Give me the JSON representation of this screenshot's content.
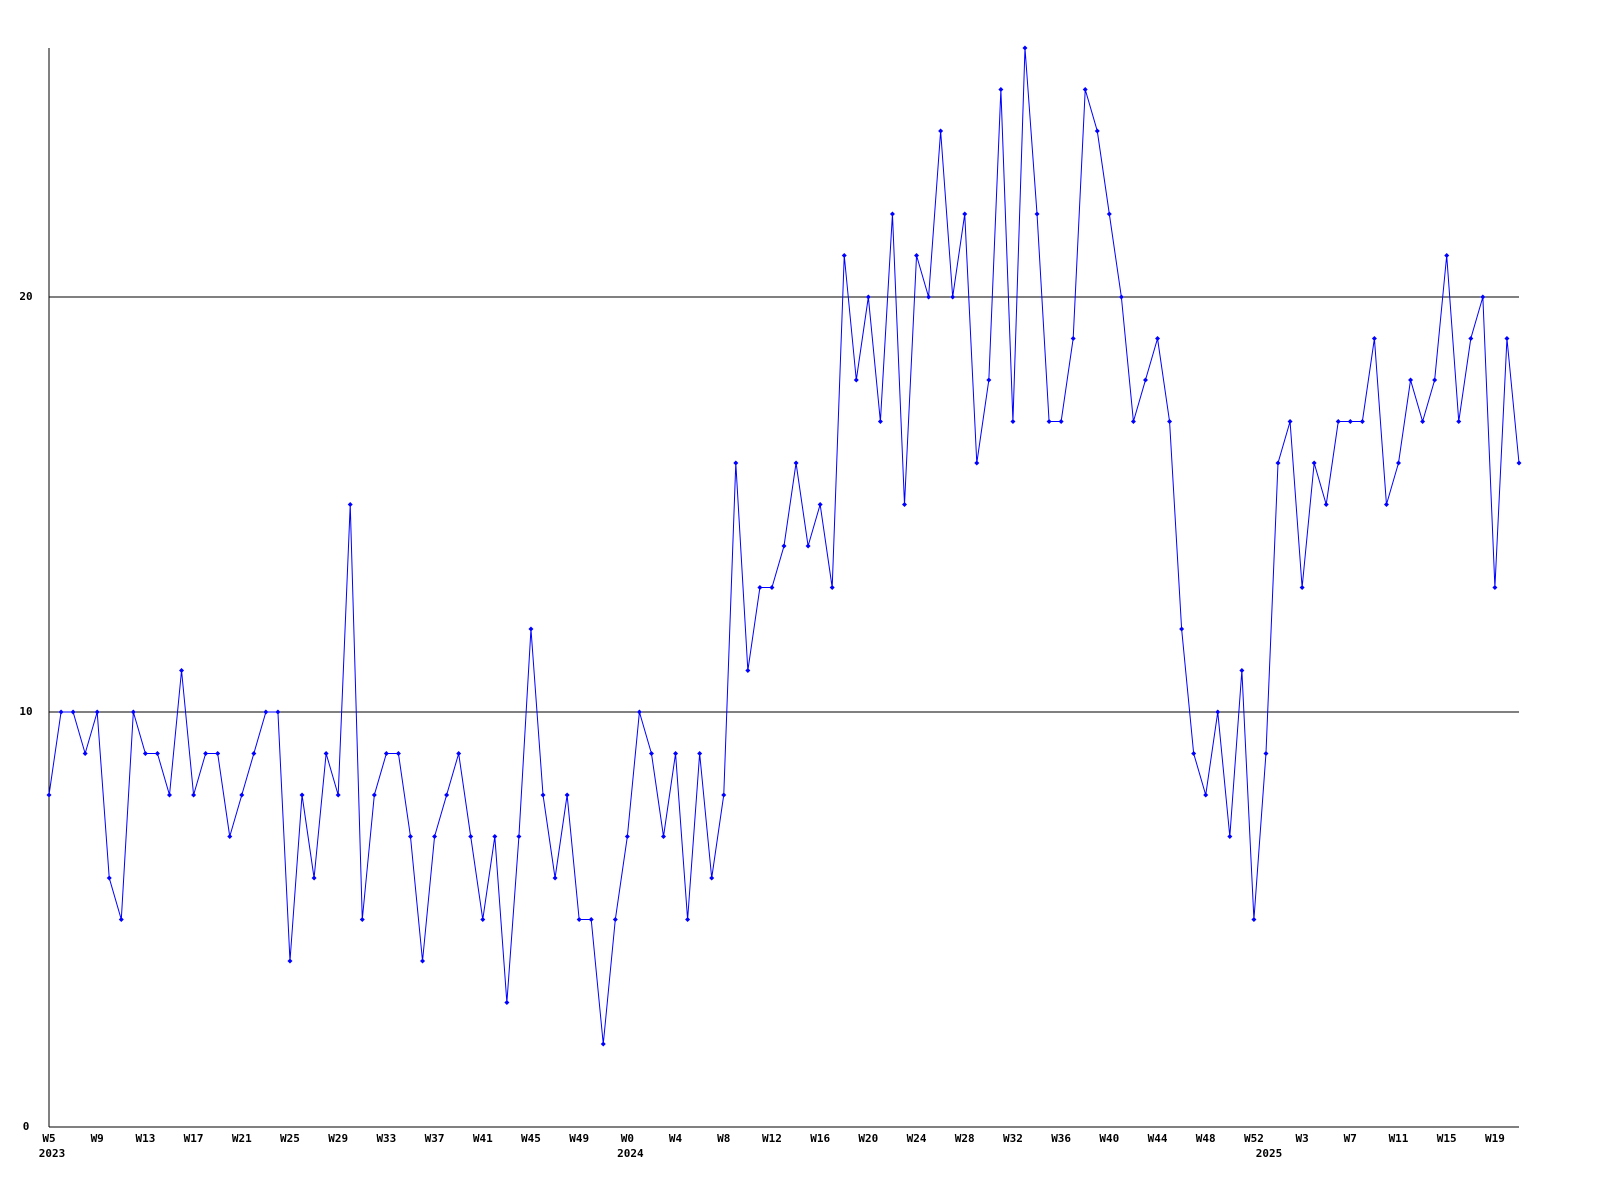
{
  "chart_data": {
    "type": "line",
    "categories": [
      "W5",
      null,
      null,
      null,
      "W9",
      null,
      null,
      null,
      "W13",
      null,
      null,
      null,
      "W17",
      null,
      null,
      null,
      "W21",
      null,
      null,
      null,
      "W25",
      null,
      null,
      null,
      "W29",
      null,
      null,
      null,
      "W33",
      null,
      null,
      null,
      "W37",
      null,
      null,
      null,
      "W41",
      null,
      null,
      null,
      "W45",
      null,
      null,
      null,
      "W49",
      null,
      null,
      null,
      "W0",
      null,
      null,
      null,
      "W4",
      null,
      null,
      null,
      "W8",
      null,
      null,
      null,
      "W12",
      null,
      null,
      null,
      "W16",
      null,
      null,
      null,
      "W20",
      null,
      null,
      null,
      "W24",
      null,
      null,
      null,
      "W28",
      null,
      null,
      null,
      "W32",
      null,
      null,
      null,
      "W36",
      null,
      null,
      null,
      "W40",
      null,
      null,
      null,
      "W44",
      null,
      null,
      null,
      "W48",
      null,
      null,
      null,
      "W52",
      null,
      null,
      null,
      "W3",
      null,
      null,
      null,
      "W7",
      null,
      null,
      null,
      "W11",
      null,
      null,
      null,
      "W15",
      null,
      null,
      null,
      "W19",
      null,
      null
    ],
    "category_years": [
      "2023",
      null,
      null,
      null,
      null,
      null,
      null,
      null,
      null,
      null,
      null,
      null,
      null,
      null,
      null,
      null,
      null,
      null,
      null,
      null,
      null,
      null,
      null,
      null,
      null,
      null,
      null,
      null,
      null,
      null,
      null,
      null,
      null,
      null,
      null,
      null,
      null,
      null,
      null,
      null,
      null,
      null,
      null,
      null,
      null,
      null,
      null,
      null,
      "2024",
      null,
      null,
      null,
      null,
      null,
      null,
      null,
      null,
      null,
      null,
      null,
      null,
      null,
      null,
      null,
      null,
      null,
      null,
      null,
      null,
      null,
      null,
      null,
      null,
      null,
      null,
      null,
      null,
      null,
      null,
      null,
      null,
      null,
      null,
      null,
      null,
      null,
      null,
      null,
      null,
      null,
      null,
      null,
      null,
      null,
      null,
      null,
      null,
      null,
      null,
      null,
      null,
      "2025",
      null,
      null,
      null,
      null,
      null,
      null,
      null,
      null,
      null,
      null,
      null,
      null,
      null,
      null,
      null,
      null,
      null,
      null,
      null,
      null,
      null
    ],
    "values": [
      8,
      10,
      10,
      9,
      10,
      6,
      5,
      10,
      9,
      9,
      8,
      11,
      8,
      9,
      9,
      7,
      8,
      9,
      10,
      10,
      4,
      8,
      6,
      9,
      8,
      15,
      5,
      8,
      9,
      9,
      7,
      4,
      7,
      8,
      9,
      7,
      5,
      7,
      3,
      7,
      12,
      8,
      6,
      8,
      5,
      5,
      2,
      5,
      7,
      10,
      9,
      7,
      9,
      5,
      9,
      6,
      8,
      16,
      11,
      13,
      13,
      14,
      16,
      14,
      15,
      13,
      21,
      18,
      20,
      17,
      22,
      15,
      21,
      20,
      24,
      20,
      22,
      16,
      18,
      25,
      17,
      26,
      22,
      17,
      17,
      19,
      25,
      24,
      22,
      20,
      17,
      18,
      19,
      17,
      12,
      9,
      8,
      10,
      7,
      11,
      5,
      9,
      16,
      17,
      13,
      16,
      15,
      17,
      17,
      17,
      19,
      15,
      16,
      18,
      17,
      18,
      21,
      17,
      19,
      20,
      13,
      19,
      16
    ],
    "color": "#0000ff",
    "ylim": [
      0,
      26
    ],
    "yticks": [
      0,
      10,
      20
    ],
    "grid": true
  }
}
